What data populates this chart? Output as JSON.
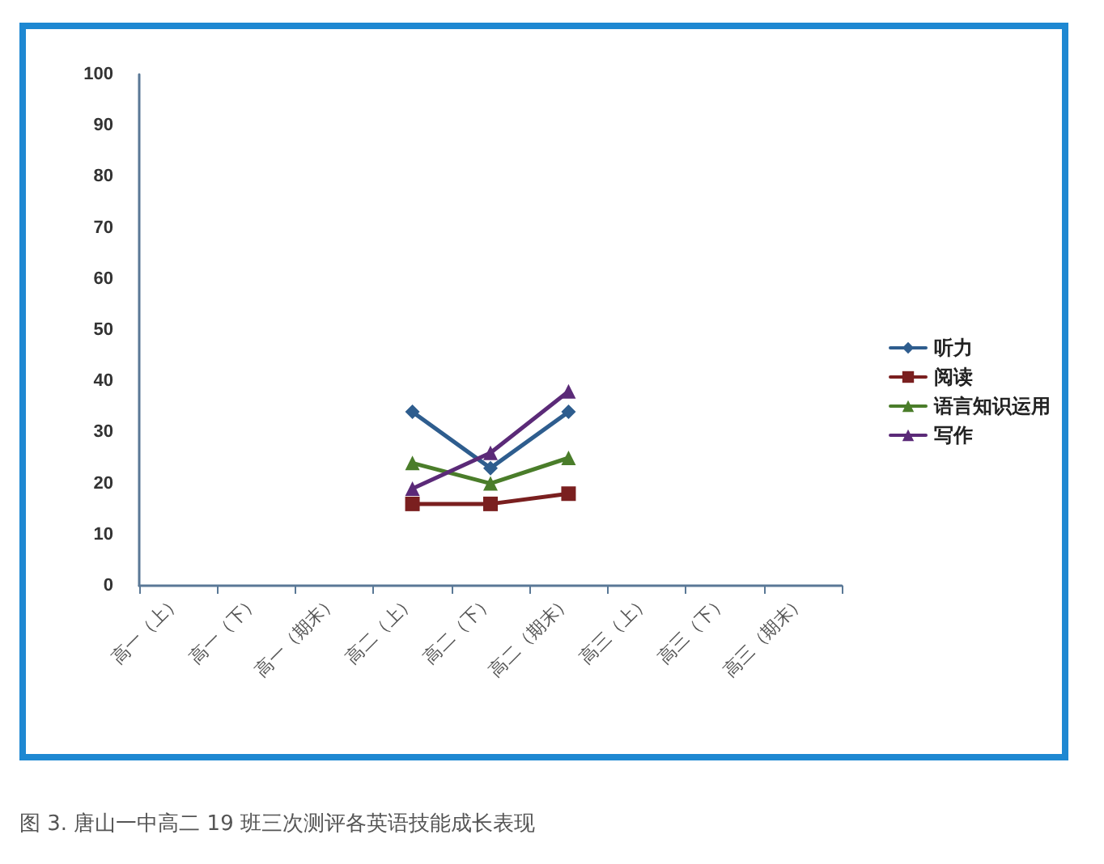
{
  "chart_data": {
    "type": "line",
    "categories": [
      "高一（上）",
      "高一（下）",
      "高一（期末）",
      "高二（上）",
      "高二（下）",
      "高二（期末）",
      "高三（上）",
      "高三（下）",
      "高三（期末）"
    ],
    "series": [
      {
        "name": "听力",
        "color": "#2e5d8e",
        "marker": "diamond",
        "values": [
          null,
          null,
          null,
          34,
          23,
          34,
          null,
          null,
          null
        ]
      },
      {
        "name": "阅读",
        "color": "#7a1f1f",
        "marker": "square",
        "values": [
          null,
          null,
          null,
          16,
          16,
          18,
          null,
          null,
          null
        ]
      },
      {
        "name": "语言知识运用",
        "color": "#4a7d2a",
        "marker": "triangle",
        "values": [
          null,
          null,
          null,
          24,
          20,
          25,
          null,
          null,
          null
        ]
      },
      {
        "name": "写作",
        "color": "#5b2a78",
        "marker": "triangle",
        "values": [
          null,
          null,
          null,
          19,
          26,
          38,
          null,
          null,
          null
        ]
      }
    ],
    "ylim": [
      0,
      100
    ],
    "yticks": [
      0,
      10,
      20,
      30,
      40,
      50,
      60,
      70,
      80,
      90,
      100
    ],
    "grid": false,
    "legend": "right",
    "line_style": "solid",
    "annotations": [
      "图 3. 唐山一中高二 19 班三次测评各英语技能成长表现"
    ]
  }
}
